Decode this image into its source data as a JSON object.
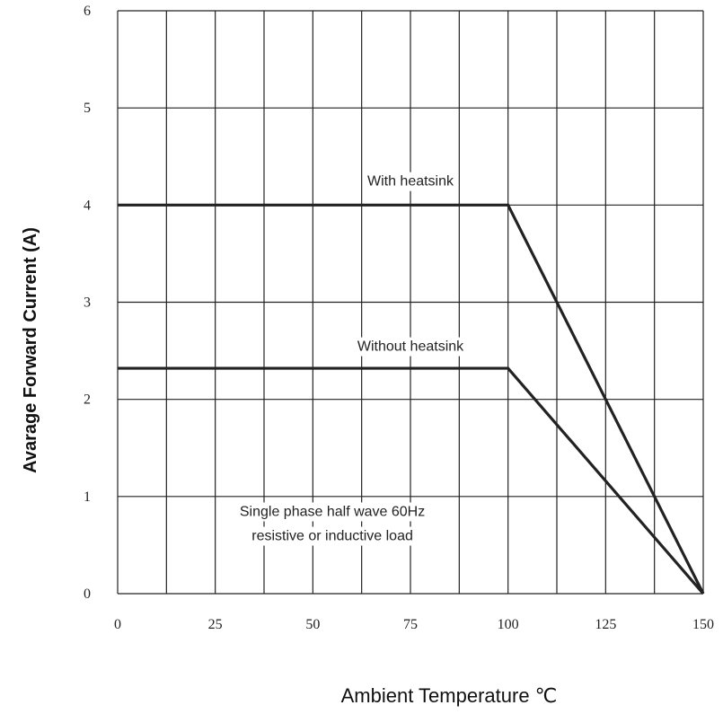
{
  "chart_data": {
    "type": "line",
    "title": "",
    "xlabel": "Ambient Temperature ℃",
    "ylabel": "Avarage Forward Current (A)",
    "xlim": [
      0,
      150
    ],
    "ylim": [
      0,
      6
    ],
    "x_ticks": [
      0,
      25,
      50,
      75,
      100,
      125,
      150
    ],
    "x_tick_labels": [
      "0",
      "25",
      "50",
      "75",
      "100",
      "125",
      "150"
    ],
    "y_ticks": [
      0,
      1,
      2,
      3,
      4,
      5,
      6
    ],
    "y_tick_labels": [
      "0",
      "1",
      "2",
      "3",
      "4",
      "5",
      "6"
    ],
    "x_minor_gridlines": [
      12.5,
      37.5,
      62.5,
      87.5,
      112.5,
      137.5
    ],
    "grid": true,
    "series": [
      {
        "name": "With heatsink",
        "x": [
          0,
          100,
          150
        ],
        "y": [
          4.0,
          4.0,
          0
        ]
      },
      {
        "name": "Without heatsink",
        "x": [
          0,
          100,
          150
        ],
        "y": [
          2.32,
          2.32,
          0
        ]
      }
    ],
    "annotations": [
      {
        "text": "With heatsink",
        "x": 75,
        "y": 4.2
      },
      {
        "text": "Without heatsink",
        "x": 75,
        "y": 2.5
      },
      {
        "text": "Single phase half wave 60Hz",
        "x": 55,
        "y": 0.8
      },
      {
        "text": "resistive or inductive load",
        "x": 55,
        "y": 0.55
      }
    ],
    "colors": {
      "line": "#222222",
      "grid": "#222222"
    }
  }
}
